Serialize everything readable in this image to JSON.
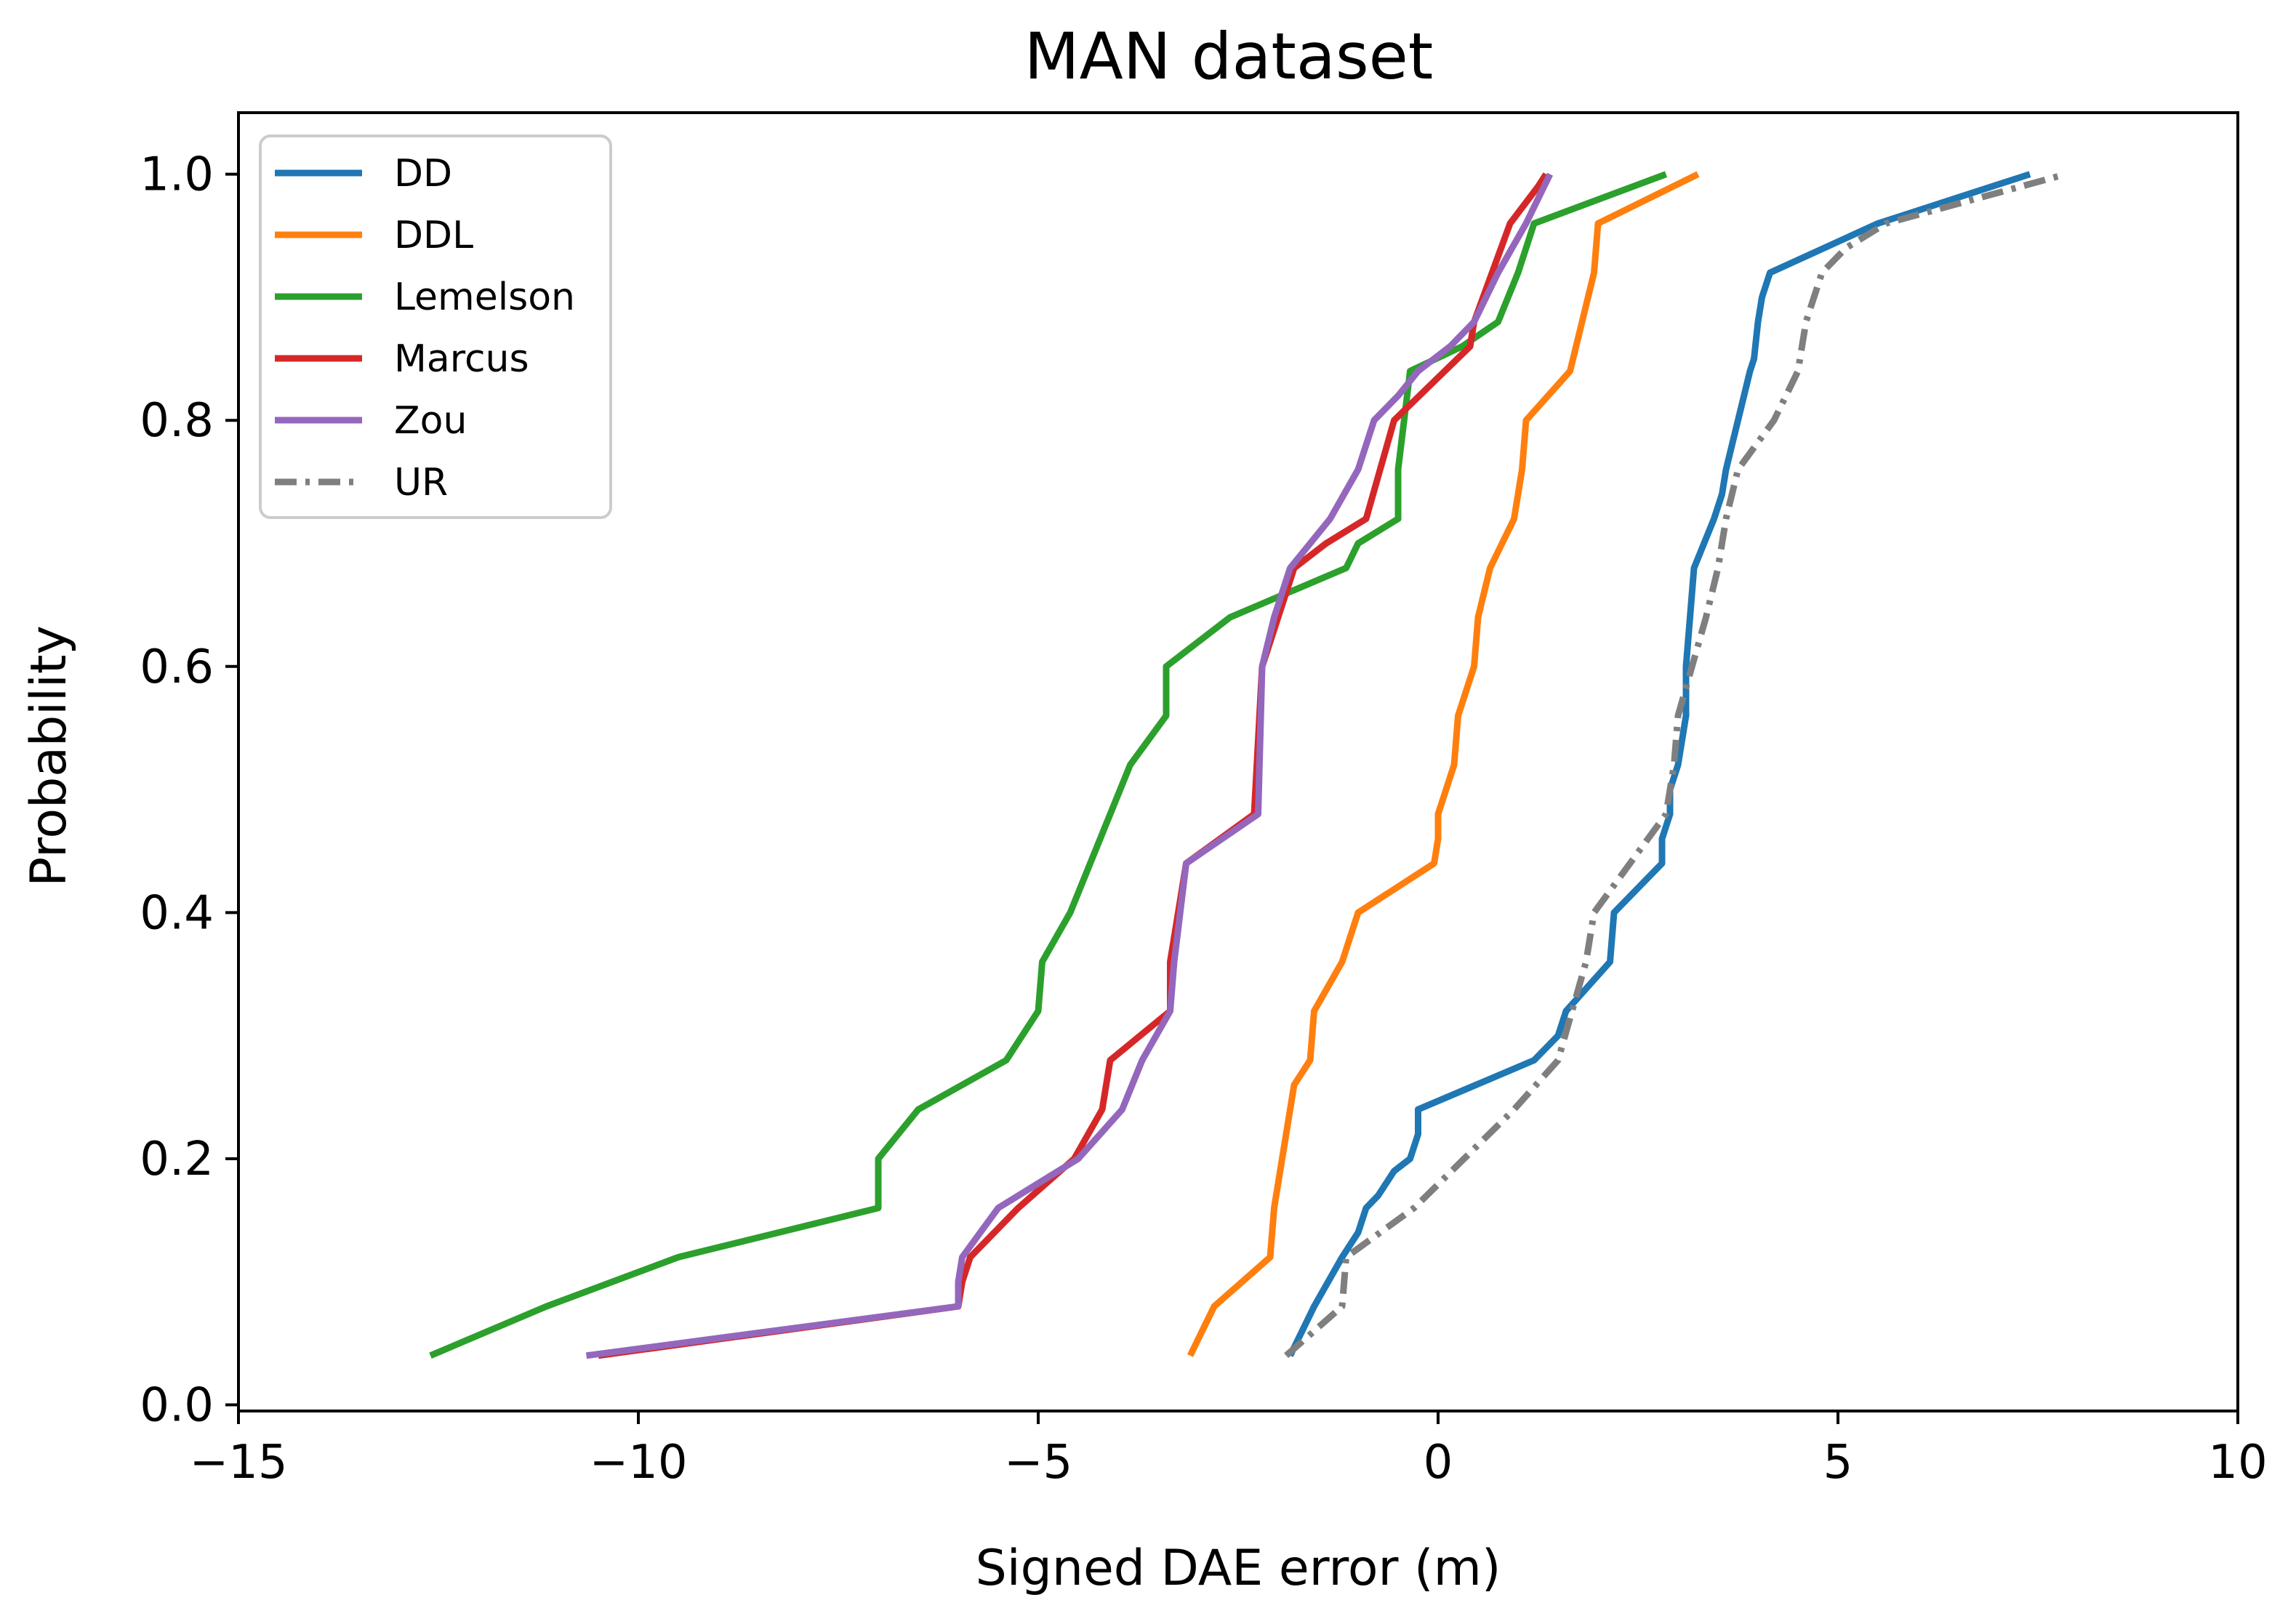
{
  "chart_data": {
    "type": "line",
    "title": "MAN dataset",
    "xlabel": "Signed DAE error (m)",
    "ylabel": "Probability",
    "xlim": [
      -15,
      10
    ],
    "ylim": [
      -0.005,
      1.05
    ],
    "xticks": [
      -15,
      -10,
      -5,
      0,
      5,
      10
    ],
    "xtick_labels": [
      "−15",
      "−10",
      "−5",
      "0",
      "5",
      "10"
    ],
    "yticks": [
      0.0,
      0.2,
      0.4,
      0.6,
      0.8,
      1.0
    ],
    "ytick_labels": [
      "0.0",
      "0.2",
      "0.4",
      "0.6",
      "0.8",
      "1.0"
    ],
    "grid": false,
    "legend_position": "top-left",
    "series": [
      {
        "name": "DD",
        "color": "#1f77b4",
        "style": "solid",
        "x": [
          -1.85,
          -1.55,
          -1.2,
          -1.0,
          -0.9,
          -0.75,
          -0.55,
          -0.35,
          -0.25,
          -0.25,
          1.2,
          1.5,
          1.6,
          2.15,
          2.2,
          2.8,
          2.8,
          2.9,
          2.9,
          3.0,
          3.05,
          3.1,
          3.1,
          3.2,
          3.45,
          3.55,
          3.6,
          3.75,
          3.9,
          3.95,
          4.0,
          4.05,
          4.1,
          4.15,
          5.5,
          7.4
        ],
        "y": [
          0.04,
          0.08,
          0.12,
          0.14,
          0.16,
          0.17,
          0.19,
          0.2,
          0.22,
          0.24,
          0.28,
          0.3,
          0.32,
          0.36,
          0.4,
          0.44,
          0.46,
          0.48,
          0.5,
          0.52,
          0.54,
          0.56,
          0.6,
          0.68,
          0.72,
          0.74,
          0.76,
          0.8,
          0.84,
          0.85,
          0.88,
          0.9,
          0.91,
          0.92,
          0.96,
          1.0
        ]
      },
      {
        "name": "DDL",
        "color": "#ff7f0e",
        "style": "solid",
        "x": [
          -3.1,
          -2.8,
          -2.1,
          -2.05,
          -1.95,
          -1.85,
          -1.8,
          -1.6,
          -1.55,
          -1.2,
          -1.0,
          -0.05,
          0.0,
          0.0,
          0.2,
          0.25,
          0.45,
          0.5,
          0.65,
          0.95,
          1.05,
          1.1,
          1.65,
          1.8,
          1.95,
          2.0,
          3.25
        ],
        "y": [
          0.04,
          0.08,
          0.12,
          0.16,
          0.2,
          0.24,
          0.26,
          0.28,
          0.32,
          0.36,
          0.4,
          0.44,
          0.46,
          0.48,
          0.52,
          0.56,
          0.6,
          0.64,
          0.68,
          0.72,
          0.76,
          0.8,
          0.84,
          0.88,
          0.92,
          0.96,
          1.0
        ]
      },
      {
        "name": "Lemelson",
        "color": "#2ca02c",
        "style": "solid",
        "x": [
          -12.6,
          -11.15,
          -9.5,
          -7.0,
          -7.0,
          -6.5,
          -5.4,
          -5.0,
          -4.95,
          -4.6,
          -4.35,
          -4.1,
          -3.85,
          -3.4,
          -3.4,
          -2.6,
          -1.15,
          -1.0,
          -0.5,
          -0.5,
          -0.35,
          0.3,
          0.75,
          1.0,
          1.2,
          2.85
        ],
        "y": [
          0.04,
          0.08,
          0.12,
          0.16,
          0.2,
          0.24,
          0.28,
          0.32,
          0.36,
          0.4,
          0.44,
          0.48,
          0.52,
          0.56,
          0.6,
          0.64,
          0.68,
          0.7,
          0.72,
          0.76,
          0.84,
          0.86,
          0.88,
          0.92,
          0.96,
          1.0
        ]
      },
      {
        "name": "Marcus",
        "color": "#d62728",
        "style": "solid",
        "x": [
          -10.5,
          -6.0,
          -5.95,
          -5.85,
          -5.25,
          -4.55,
          -4.2,
          -4.1,
          -3.35,
          -3.35,
          -3.15,
          -2.3,
          -2.2,
          -2.0,
          -1.8,
          -1.4,
          -0.9,
          -0.55,
          0.4,
          0.45,
          0.9,
          1.25,
          1.35
        ],
        "y": [
          0.04,
          0.08,
          0.1,
          0.12,
          0.16,
          0.2,
          0.24,
          0.28,
          0.32,
          0.36,
          0.44,
          0.48,
          0.6,
          0.64,
          0.68,
          0.7,
          0.72,
          0.8,
          0.86,
          0.88,
          0.96,
          0.99,
          1.0
        ]
      },
      {
        "name": "Zou",
        "color": "#9467bd",
        "style": "solid",
        "x": [
          -10.65,
          -6.0,
          -6.0,
          -5.95,
          -5.5,
          -4.5,
          -3.95,
          -3.7,
          -3.35,
          -3.3,
          -3.15,
          -2.25,
          -2.2,
          -2.05,
          -1.85,
          -1.35,
          -1.0,
          -0.8,
          -0.5,
          -0.25,
          0.15,
          0.45,
          0.75,
          1.1,
          1.4
        ],
        "y": [
          0.04,
          0.08,
          0.1,
          0.12,
          0.16,
          0.2,
          0.24,
          0.28,
          0.32,
          0.36,
          0.44,
          0.48,
          0.6,
          0.64,
          0.68,
          0.72,
          0.76,
          0.8,
          0.82,
          0.84,
          0.86,
          0.88,
          0.92,
          0.96,
          1.0
        ]
      },
      {
        "name": "UR",
        "color": "#7f7f7f",
        "style": "dashdot",
        "x": [
          -1.9,
          -1.2,
          -1.15,
          -0.3,
          0.95,
          1.5,
          1.85,
          1.95,
          2.85,
          2.95,
          3.0,
          3.35,
          3.5,
          3.6,
          3.75,
          4.2,
          4.5,
          4.6,
          4.8,
          5.1,
          5.6,
          7.85
        ],
        "y": [
          0.04,
          0.08,
          0.12,
          0.16,
          0.24,
          0.28,
          0.36,
          0.4,
          0.48,
          0.52,
          0.56,
          0.64,
          0.68,
          0.72,
          0.76,
          0.8,
          0.84,
          0.88,
          0.92,
          0.94,
          0.96,
          1.0
        ]
      }
    ]
  }
}
